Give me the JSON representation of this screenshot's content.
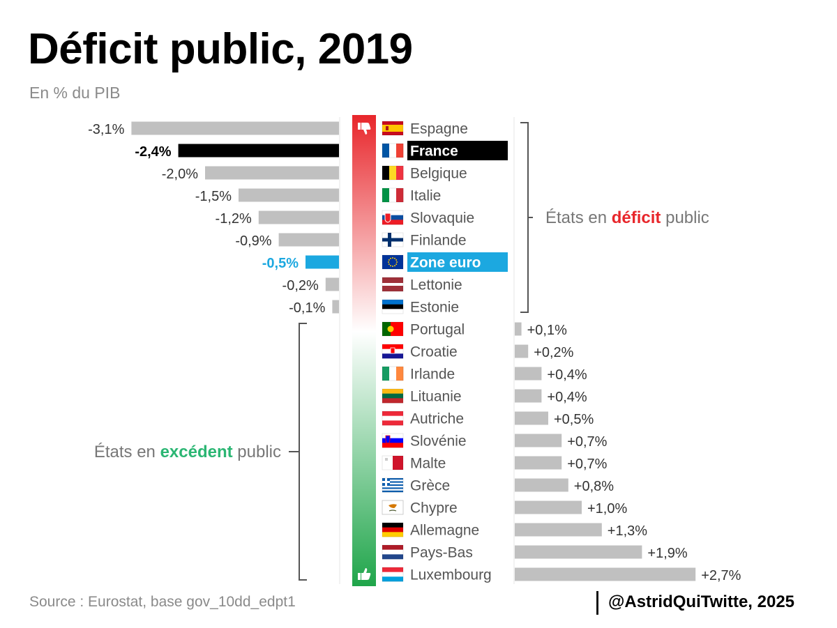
{
  "title": "Déficit public, 2019",
  "subtitle": "En % du PIB",
  "source": "Source : Eurostat, base gov_10dd_edpt1",
  "credit": "@AstridQuiTwitte, 2025",
  "deficit_bracket": {
    "prefix": "États en ",
    "highlight": "déficit",
    "suffix": " public",
    "color": "#e8262b"
  },
  "surplus_bracket": {
    "prefix": "États en ",
    "highlight": "excédent",
    "suffix": " public",
    "color": "#2bb673"
  },
  "colors": {
    "bar": "#c0c0c0",
    "france": "#000000",
    "euro": "#1ca8e0",
    "label": "#555555",
    "value": "#333333",
    "gradient_top": "#e8262b",
    "gradient_mid": "#ffffff",
    "gradient_bottom": "#1fa54a"
  },
  "icons": {
    "top": "thumbs-down-icon",
    "bottom": "thumbs-up-icon"
  },
  "chart_data": {
    "type": "bar",
    "orientation": "horizontal-diverging",
    "categories": [
      "Espagne",
      "France",
      "Belgique",
      "Italie",
      "Slovaquie",
      "Finlande",
      "Zone euro",
      "Lettonie",
      "Estonie",
      "Portugal",
      "Croatie",
      "Irlande",
      "Lituanie",
      "Autriche",
      "Slovénie",
      "Malte",
      "Grèce",
      "Chypre",
      "Allemagne",
      "Pays-Bas",
      "Luxembourg"
    ],
    "values": [
      -3.1,
      -2.4,
      -2.0,
      -1.5,
      -1.2,
      -0.9,
      -0.5,
      -0.2,
      -0.1,
      0.1,
      0.2,
      0.4,
      0.4,
      0.5,
      0.7,
      0.7,
      0.8,
      1.0,
      1.3,
      1.9,
      2.7
    ],
    "labels": [
      "-3,1%",
      "-2,4%",
      "-2,0%",
      "-1,5%",
      "-1,2%",
      "-0,9%",
      "-0,5%",
      "-0,2%",
      "-0,1%",
      "+0,1%",
      "+0,2%",
      "+0,4%",
      "+0,4%",
      "+0,5%",
      "+0,7%",
      "+0,7%",
      "+0,8%",
      "+1,0%",
      "+1,3%",
      "+1,9%",
      "+2,7%"
    ],
    "highlights": {
      "France": "france",
      "Zone euro": "euro"
    },
    "flags": [
      "flag-spain-icon",
      "flag-france-icon",
      "flag-belgium-icon",
      "flag-italy-icon",
      "flag-slovakia-icon",
      "flag-finland-icon",
      "flag-eu-icon",
      "flag-latvia-icon",
      "flag-estonia-icon",
      "flag-portugal-icon",
      "flag-croatia-icon",
      "flag-ireland-icon",
      "flag-lithuania-icon",
      "flag-austria-icon",
      "flag-slovenia-icon",
      "flag-malta-icon",
      "flag-greece-icon",
      "flag-cyprus-icon",
      "flag-germany-icon",
      "flag-netherlands-icon",
      "flag-luxembourg-icon"
    ],
    "unit": "% du PIB"
  }
}
